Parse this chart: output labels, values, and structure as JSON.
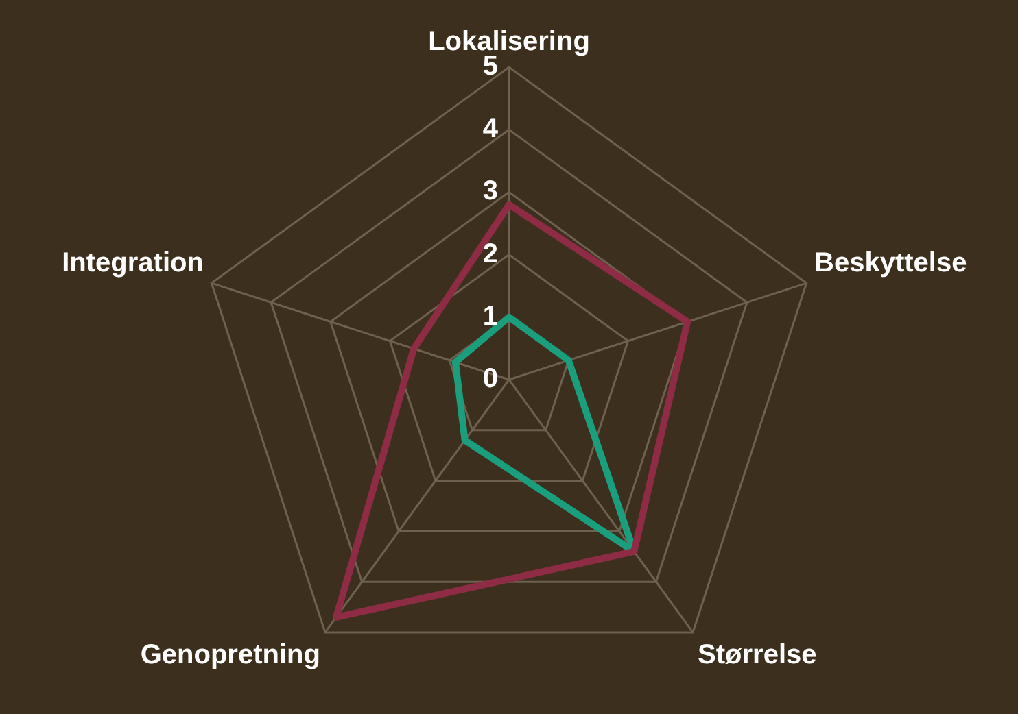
{
  "chart_data": {
    "type": "radar",
    "categories": [
      "Lokalisering",
      "Beskyttelse",
      "Størrelse",
      "Genopretning",
      "Integration"
    ],
    "series": [
      {
        "color": "#8e2c45",
        "values": [
          2.8,
          3,
          3.4,
          4.7,
          1.6
        ]
      },
      {
        "color": "#1a9e7e",
        "values": [
          1,
          1,
          3.4,
          1.2,
          0.9
        ]
      }
    ],
    "ylim": [
      0,
      5
    ],
    "yticks": [
      0,
      1,
      2,
      3,
      4,
      5
    ],
    "grid": true,
    "legend": false,
    "marker": "none"
  }
}
